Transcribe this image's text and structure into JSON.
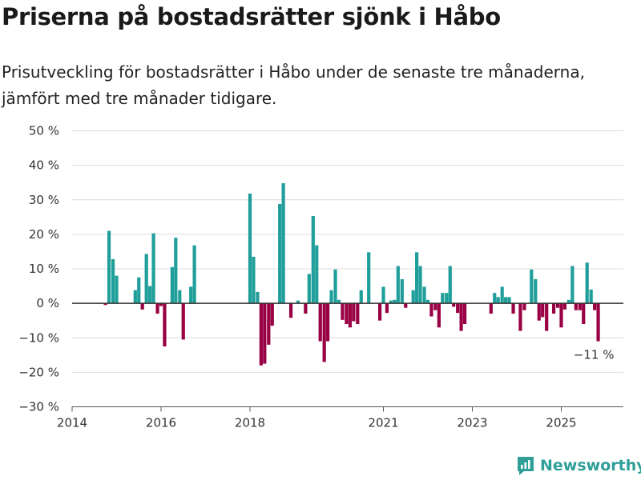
{
  "title": "Priserna på bostadsrätter sjönk i Håbo",
  "subtitle": "Prisutveckling för bostadsrätter i Håbo under de senaste tre månaderna, jämfört med tre månader tidigare.",
  "brand": {
    "name": "Newsworthy",
    "color": "#2e9e97"
  },
  "colors": {
    "positive": "#1f9e9a",
    "negative": "#990044",
    "grid": "#dcdcdc",
    "zero_line": "#333333"
  },
  "chart_data": {
    "type": "bar",
    "ylim": [
      -30,
      50
    ],
    "y_ticks": [
      50,
      40,
      30,
      20,
      10,
      0,
      -10,
      -20,
      -30
    ],
    "y_tick_labels": [
      "50 %",
      "40 %",
      "30 %",
      "20 %",
      "10 %",
      "0 %",
      "−10 %",
      "−20 %",
      "−30 %"
    ],
    "xlim": [
      2014.0,
      2026.4
    ],
    "x_ticks": [
      2014,
      2016,
      2018,
      2021,
      2023,
      2025
    ],
    "x_tick_labels": [
      "2014",
      "2016",
      "2018",
      "2021",
      "2023",
      "2025"
    ],
    "annotation": {
      "label": "−11 %",
      "x": 2025.75,
      "y": -11
    },
    "series": [
      {
        "name": "Prisutveckling",
        "unit": "%",
        "points": [
          {
            "x": 2014.75,
            "y": -0.5
          },
          {
            "x": 2014.83,
            "y": 21
          },
          {
            "x": 2014.92,
            "y": 12.8
          },
          {
            "x": 2015.0,
            "y": 8
          },
          {
            "x": 2015.42,
            "y": 3.8
          },
          {
            "x": 2015.5,
            "y": 7.5
          },
          {
            "x": 2015.58,
            "y": -1.8
          },
          {
            "x": 2015.67,
            "y": 14.3
          },
          {
            "x": 2015.75,
            "y": 5
          },
          {
            "x": 2015.83,
            "y": 20.3
          },
          {
            "x": 2015.92,
            "y": -3
          },
          {
            "x": 2016.0,
            "y": -0.8
          },
          {
            "x": 2016.08,
            "y": -12.5
          },
          {
            "x": 2016.25,
            "y": 10.5
          },
          {
            "x": 2016.33,
            "y": 19
          },
          {
            "x": 2016.42,
            "y": 3.8
          },
          {
            "x": 2016.5,
            "y": -10.5
          },
          {
            "x": 2016.67,
            "y": 4.8
          },
          {
            "x": 2016.75,
            "y": 16.8
          },
          {
            "x": 2018.0,
            "y": 31.8
          },
          {
            "x": 2018.08,
            "y": 13.5
          },
          {
            "x": 2018.17,
            "y": 3.3
          },
          {
            "x": 2018.25,
            "y": -18
          },
          {
            "x": 2018.33,
            "y": -17.5
          },
          {
            "x": 2018.42,
            "y": -12
          },
          {
            "x": 2018.5,
            "y": -6.5
          },
          {
            "x": 2018.67,
            "y": 28.8
          },
          {
            "x": 2018.75,
            "y": 34.8
          },
          {
            "x": 2018.92,
            "y": -4.2
          },
          {
            "x": 2019.08,
            "y": 0.8
          },
          {
            "x": 2019.25,
            "y": -3
          },
          {
            "x": 2019.33,
            "y": 8.5
          },
          {
            "x": 2019.42,
            "y": 25.3
          },
          {
            "x": 2019.5,
            "y": 16.8
          },
          {
            "x": 2019.58,
            "y": -11
          },
          {
            "x": 2019.67,
            "y": -17
          },
          {
            "x": 2019.75,
            "y": -11
          },
          {
            "x": 2019.83,
            "y": 3.8
          },
          {
            "x": 2019.92,
            "y": 9.8
          },
          {
            "x": 2020.0,
            "y": 1
          },
          {
            "x": 2020.08,
            "y": -4.8
          },
          {
            "x": 2020.17,
            "y": -6
          },
          {
            "x": 2020.25,
            "y": -7
          },
          {
            "x": 2020.33,
            "y": -5.2
          },
          {
            "x": 2020.42,
            "y": -6
          },
          {
            "x": 2020.5,
            "y": 3.8
          },
          {
            "x": 2020.67,
            "y": 14.8
          },
          {
            "x": 2020.92,
            "y": -5
          },
          {
            "x": 2021.0,
            "y": 4.8
          },
          {
            "x": 2021.08,
            "y": -2.8
          },
          {
            "x": 2021.17,
            "y": 0.8
          },
          {
            "x": 2021.25,
            "y": 1
          },
          {
            "x": 2021.33,
            "y": 10.8
          },
          {
            "x": 2021.42,
            "y": 7
          },
          {
            "x": 2021.5,
            "y": -1.3
          },
          {
            "x": 2021.67,
            "y": 3.8
          },
          {
            "x": 2021.75,
            "y": 14.8
          },
          {
            "x": 2021.83,
            "y": 10.8
          },
          {
            "x": 2021.92,
            "y": 4.8
          },
          {
            "x": 2022.0,
            "y": 1
          },
          {
            "x": 2022.08,
            "y": -3.8
          },
          {
            "x": 2022.17,
            "y": -2
          },
          {
            "x": 2022.25,
            "y": -7
          },
          {
            "x": 2022.33,
            "y": 3
          },
          {
            "x": 2022.42,
            "y": 3
          },
          {
            "x": 2022.5,
            "y": 10.8
          },
          {
            "x": 2022.58,
            "y": -1
          },
          {
            "x": 2022.67,
            "y": -2.8
          },
          {
            "x": 2022.75,
            "y": -8
          },
          {
            "x": 2022.83,
            "y": -6
          },
          {
            "x": 2023.42,
            "y": -3
          },
          {
            "x": 2023.5,
            "y": 3
          },
          {
            "x": 2023.58,
            "y": 1.8
          },
          {
            "x": 2023.67,
            "y": 4.8
          },
          {
            "x": 2023.75,
            "y": 1.8
          },
          {
            "x": 2023.83,
            "y": 1.8
          },
          {
            "x": 2023.92,
            "y": -3
          },
          {
            "x": 2024.08,
            "y": -8
          },
          {
            "x": 2024.17,
            "y": -2
          },
          {
            "x": 2024.33,
            "y": 9.8
          },
          {
            "x": 2024.42,
            "y": 7
          },
          {
            "x": 2024.5,
            "y": -5
          },
          {
            "x": 2024.58,
            "y": -4
          },
          {
            "x": 2024.67,
            "y": -8
          },
          {
            "x": 2024.83,
            "y": -3
          },
          {
            "x": 2024.92,
            "y": -1.3
          },
          {
            "x": 2025.0,
            "y": -7
          },
          {
            "x": 2025.08,
            "y": -1.8
          },
          {
            "x": 2025.17,
            "y": 1
          },
          {
            "x": 2025.25,
            "y": 10.8
          },
          {
            "x": 2025.33,
            "y": -2
          },
          {
            "x": 2025.42,
            "y": -2
          },
          {
            "x": 2025.5,
            "y": -6
          },
          {
            "x": 2025.58,
            "y": 11.8
          },
          {
            "x": 2025.67,
            "y": 4
          },
          {
            "x": 2025.75,
            "y": -2
          },
          {
            "x": 2025.83,
            "y": -11
          }
        ]
      }
    ]
  }
}
